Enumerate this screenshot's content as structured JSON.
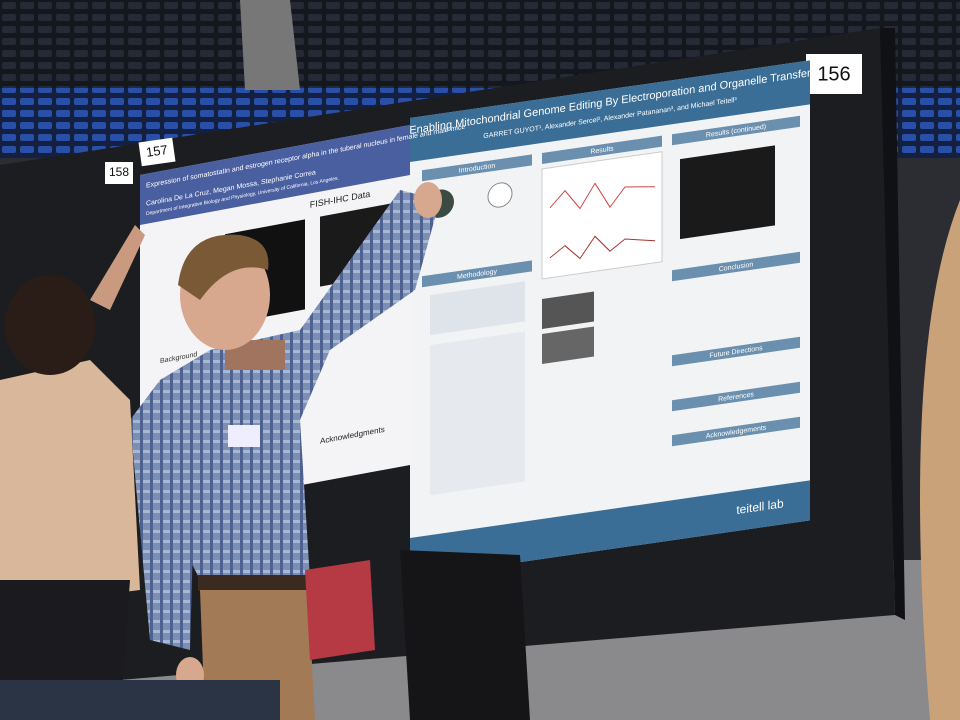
{
  "board_numbers": {
    "main": "156",
    "left": "157",
    "far_left": "158"
  },
  "main_poster": {
    "title": "Enabling Mitochondrial Genome Editing By Electroporation and Organelle Transfer",
    "authors": "GARRET GUYOT¹, Alexander Sercel², Alexander Patananan³, and Michael Teitell³",
    "sections": [
      "Introduction",
      "Results",
      "Methodology",
      "Results (continued)",
      "Conclusion",
      "Future Directions",
      "References",
      "Acknowledgements"
    ],
    "logo": "teitell lab"
  },
  "left_poster": {
    "title": "Expression of somatostatin and estrogen receptor alpha in the tuberal nucleus in female and male mice",
    "authors": "Carolina De La Cruz, Megan Mossa, Stephanie Correa",
    "department": "Department of Integrative Biology and Physiology, University of California, Los Angeles.",
    "sections": [
      "FISH-IHC Data",
      "Background",
      "Acknowledgments"
    ]
  }
}
